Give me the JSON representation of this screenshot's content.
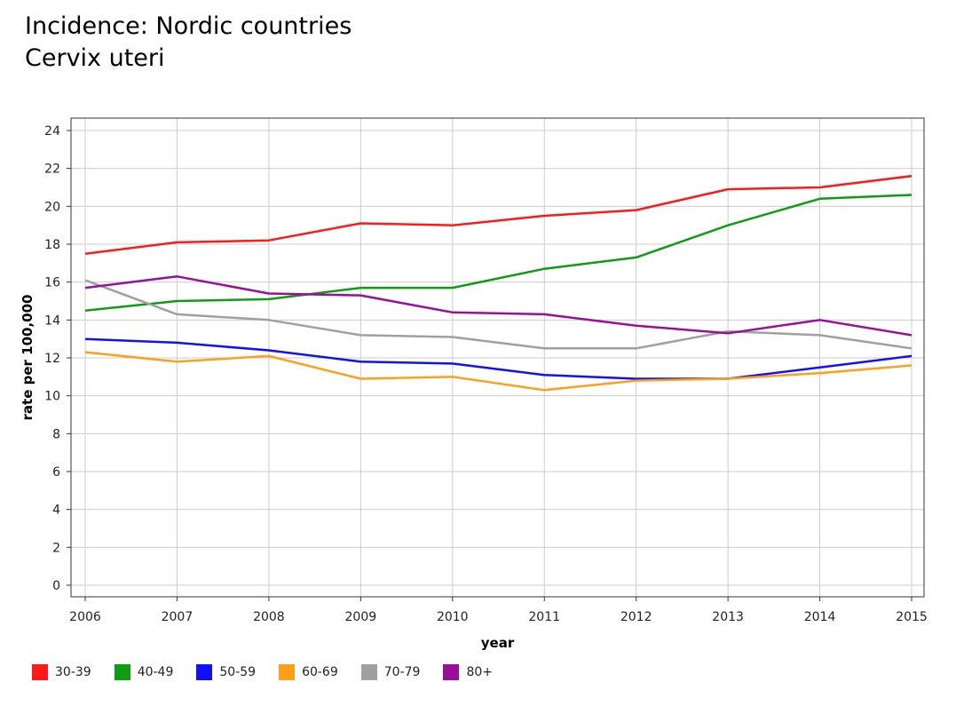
{
  "header": {
    "title": "Incidence: Nordic countries",
    "subtitle": "Cervix uteri"
  },
  "chart_data": {
    "type": "line",
    "title": "Incidence: Nordic countries",
    "subtitle": "Cervix uteri",
    "xlabel": "year",
    "ylabel": "rate per 100,000",
    "x": [
      2006,
      2007,
      2008,
      2009,
      2010,
      2011,
      2012,
      2013,
      2014,
      2015
    ],
    "xlim": [
      2006,
      2015
    ],
    "ylim": [
      0,
      24
    ],
    "yticks": [
      0,
      2,
      4,
      6,
      8,
      10,
      12,
      14,
      16,
      18,
      20,
      22,
      24
    ],
    "grid": true,
    "legend_position": "bottom-left",
    "series": [
      {
        "name": "30-39",
        "color": "#ff1a1a",
        "values": [
          17.5,
          18.1,
          18.2,
          19.1,
          19.0,
          19.5,
          19.8,
          20.9,
          21.0,
          21.6
        ]
      },
      {
        "name": "40-49",
        "color": "#109c10",
        "values": [
          14.5,
          15.0,
          15.1,
          15.7,
          15.7,
          16.7,
          17.3,
          19.0,
          20.4,
          20.6
        ]
      },
      {
        "name": "50-59",
        "color": "#1010ff",
        "values": [
          13.0,
          12.8,
          12.4,
          11.8,
          11.7,
          11.1,
          10.9,
          10.9,
          11.5,
          12.1
        ]
      },
      {
        "name": "60-69",
        "color": "#ff9f1a",
        "values": [
          12.3,
          11.8,
          12.1,
          10.9,
          11.0,
          10.3,
          10.8,
          10.9,
          11.2,
          11.6
        ]
      },
      {
        "name": "70-79",
        "color": "#a0a0a0",
        "values": [
          16.1,
          14.3,
          14.0,
          13.2,
          13.1,
          12.5,
          12.5,
          13.4,
          13.2,
          12.5
        ]
      },
      {
        "name": "80+",
        "color": "#9a0f9a",
        "values": [
          15.7,
          16.3,
          15.4,
          15.3,
          14.4,
          14.3,
          13.7,
          13.3,
          14.0,
          13.2
        ]
      }
    ]
  }
}
